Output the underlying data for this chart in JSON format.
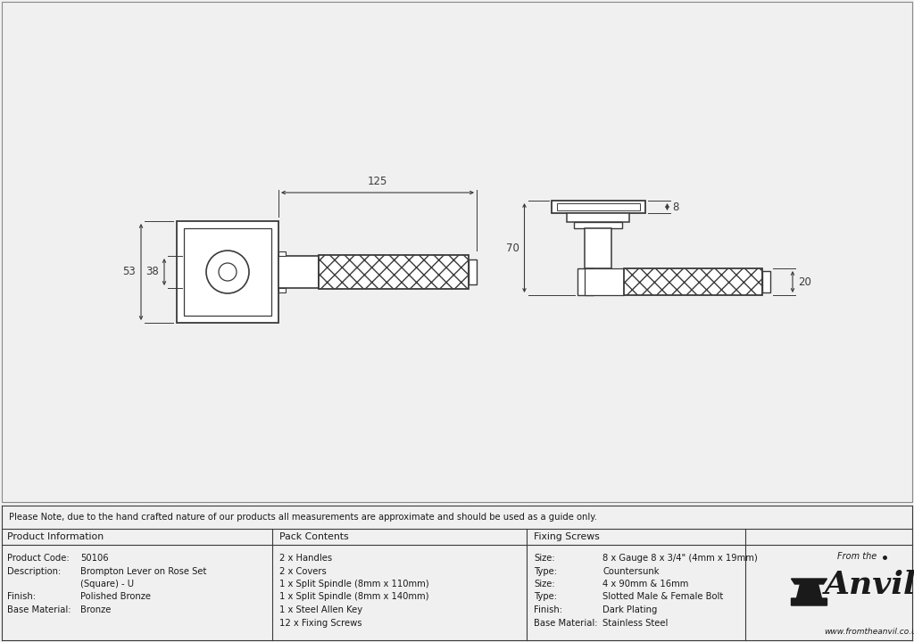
{
  "bg_color": "#f0f0f0",
  "drawing_bg": "#ffffff",
  "line_color": "#3a3a3a",
  "dim_color": "#3a3a3a",
  "note_text": "Please Note, due to the hand crafted nature of our products all measurements are approximate and should be used as a guide only.",
  "product_info": {
    "header": "Product Information",
    "rows": [
      [
        "Product Code:",
        "50106"
      ],
      [
        "Description:",
        "Brompton Lever on Rose Set"
      ],
      [
        "",
        "(Square) - U"
      ],
      [
        "Finish:",
        "Polished Bronze"
      ],
      [
        "Base Material:",
        "Bronze"
      ]
    ]
  },
  "pack_contents": {
    "header": "Pack Contents",
    "items": [
      "2 x Handles",
      "2 x Covers",
      "1 x Split Spindle (8mm x 110mm)",
      "1 x Split Spindle (8mm x 140mm)",
      "1 x Steel Allen Key",
      "12 x Fixing Screws"
    ]
  },
  "fixing_screws": {
    "header": "Fixing Screws",
    "rows": [
      [
        "Size:",
        "8 x Gauge 8 x 3/4\" (4mm x 19mm)"
      ],
      [
        "Type:",
        "Countersunk"
      ],
      [
        "Size:",
        "4 x 90mm & 16mm"
      ],
      [
        "Type:",
        "Slotted Male & Female Bolt"
      ],
      [
        "Finish:",
        "Dark Plating"
      ],
      [
        "Base Material:",
        "Stainless Steel"
      ]
    ]
  },
  "dim_125": "125",
  "dim_53": "53",
  "dim_38": "38",
  "dim_70": "70",
  "dim_8": "8",
  "dim_20": "20"
}
